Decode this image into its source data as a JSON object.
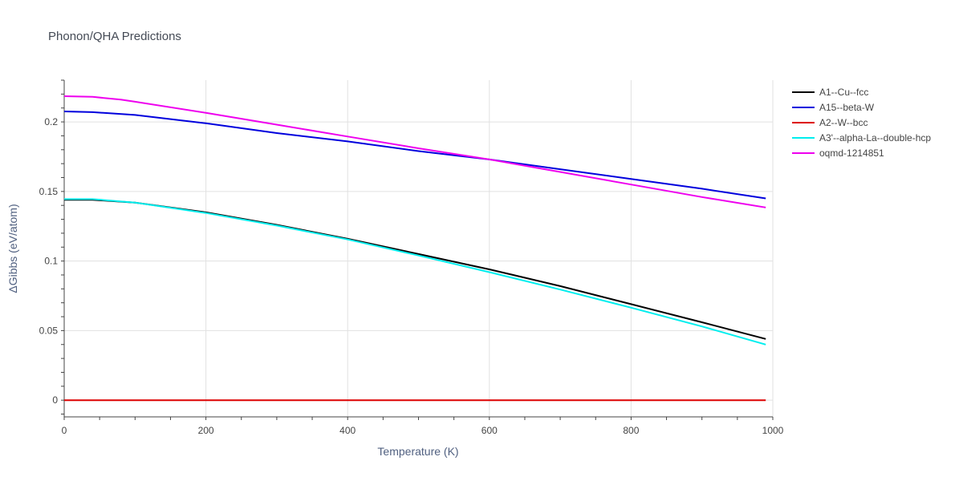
{
  "chart_data": {
    "type": "line",
    "title": "Phonon/QHA Predictions",
    "xlabel": "Temperature (K)",
    "ylabel": "ΔGibbs (eV/atom)",
    "xlim": [
      0,
      1000
    ],
    "ylim": [
      -0.012,
      0.23
    ],
    "xticks": [
      0,
      200,
      400,
      600,
      800,
      1000
    ],
    "xtick_labels": [
      "0",
      "200",
      "400",
      "600",
      "800",
      "1000"
    ],
    "yticks": [
      0,
      0.05,
      0.1,
      0.15,
      0.2
    ],
    "ytick_labels": [
      "0",
      "0.05",
      "0.1",
      "0.15",
      "0.2"
    ],
    "grid": true,
    "legend_position": "top-right",
    "series": [
      {
        "name": "A1--Cu--fcc",
        "color": "#000000",
        "x": [
          0,
          40,
          100,
          200,
          300,
          400,
          500,
          600,
          700,
          800,
          900,
          990
        ],
        "y": [
          0.144,
          0.144,
          0.142,
          0.135,
          0.126,
          0.116,
          0.105,
          0.094,
          0.082,
          0.069,
          0.056,
          0.044
        ]
      },
      {
        "name": "A15--beta-W",
        "color": "#0000dd",
        "x": [
          0,
          40,
          100,
          200,
          300,
          400,
          500,
          600,
          700,
          800,
          900,
          990
        ],
        "y": [
          0.2075,
          0.207,
          0.205,
          0.199,
          0.192,
          0.186,
          0.179,
          0.173,
          0.166,
          0.159,
          0.152,
          0.145
        ]
      },
      {
        "name": "A2--W--bcc",
        "color": "#dd0000",
        "x": [
          0,
          990
        ],
        "y": [
          0,
          0
        ]
      },
      {
        "name": "A3'--alpha-La--double-hcp",
        "color": "#00eeee",
        "x": [
          0,
          40,
          100,
          200,
          300,
          400,
          500,
          600,
          700,
          800,
          900,
          990
        ],
        "y": [
          0.1445,
          0.1445,
          0.142,
          0.1345,
          0.1255,
          0.1155,
          0.104,
          0.092,
          0.0795,
          0.0665,
          0.053,
          0.04
        ]
      },
      {
        "name": "oqmd-1214851",
        "color": "#ee00ee",
        "x": [
          0,
          40,
          80,
          100,
          200,
          300,
          400,
          500,
          600,
          700,
          800,
          900,
          990
        ],
        "y": [
          0.2185,
          0.218,
          0.216,
          0.2145,
          0.2065,
          0.198,
          0.1895,
          0.181,
          0.173,
          0.164,
          0.155,
          0.146,
          0.1385
        ]
      }
    ]
  }
}
